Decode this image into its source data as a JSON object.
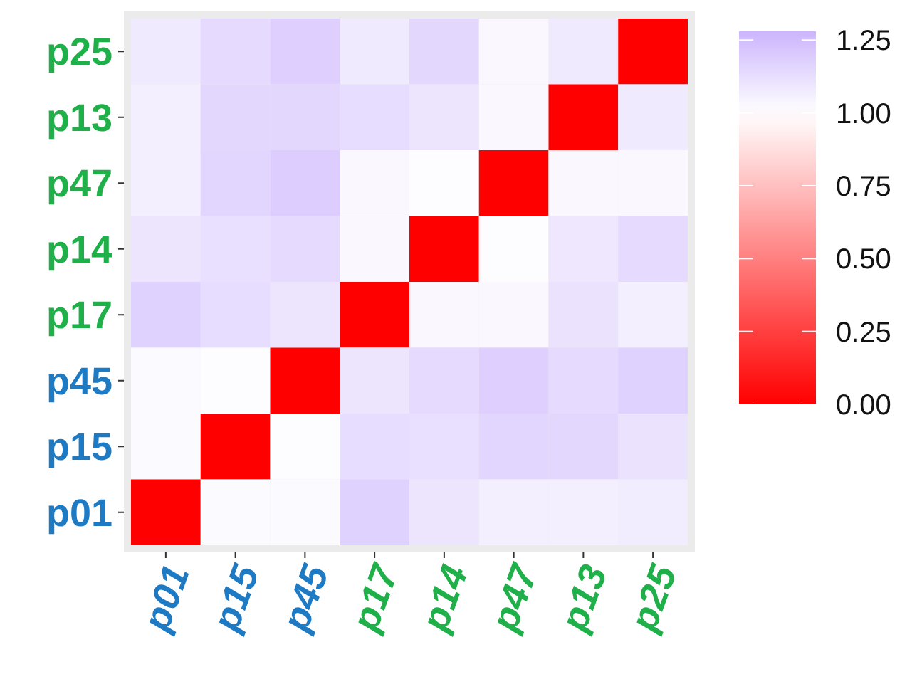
{
  "chart_data": {
    "type": "heatmap",
    "categories": [
      "p01",
      "p15",
      "p45",
      "p17",
      "p14",
      "p47",
      "p13",
      "p25"
    ],
    "y_categories": [
      "p25",
      "p13",
      "p47",
      "p14",
      "p17",
      "p45",
      "p15",
      "p01"
    ],
    "cells": [
      [
        1.08,
        1.14,
        1.18,
        1.08,
        1.15,
        1.03,
        1.08,
        0
      ],
      [
        1.06,
        1.15,
        1.15,
        1.13,
        1.1,
        1.03,
        0,
        1.08
      ],
      [
        1.06,
        1.16,
        1.19,
        1.03,
        1.01,
        0,
        1.03,
        1.03
      ],
      [
        1.1,
        1.12,
        1.14,
        1.03,
        0,
        1.01,
        1.09,
        1.14
      ],
      [
        1.17,
        1.13,
        1.1,
        0,
        1.03,
        1.03,
        1.11,
        1.06
      ],
      [
        1.02,
        1.01,
        0,
        1.1,
        1.14,
        1.18,
        1.14,
        1.17
      ],
      [
        1.02,
        0,
        1.01,
        1.13,
        1.12,
        1.16,
        1.15,
        1.11
      ],
      [
        0,
        1.02,
        1.02,
        1.17,
        1.1,
        1.06,
        1.06,
        1.07
      ]
    ],
    "clim": [
      0,
      1.28
    ],
    "cticks": [
      {
        "value": 0,
        "label": "0.00"
      },
      {
        "value": 0.25,
        "label": "0.25"
      },
      {
        "value": 0.5,
        "label": "0.50"
      },
      {
        "value": 0.75,
        "label": "0.75"
      },
      {
        "value": 1,
        "label": "1.00"
      },
      {
        "value": 1.25,
        "label": "1.25"
      }
    ]
  }
}
